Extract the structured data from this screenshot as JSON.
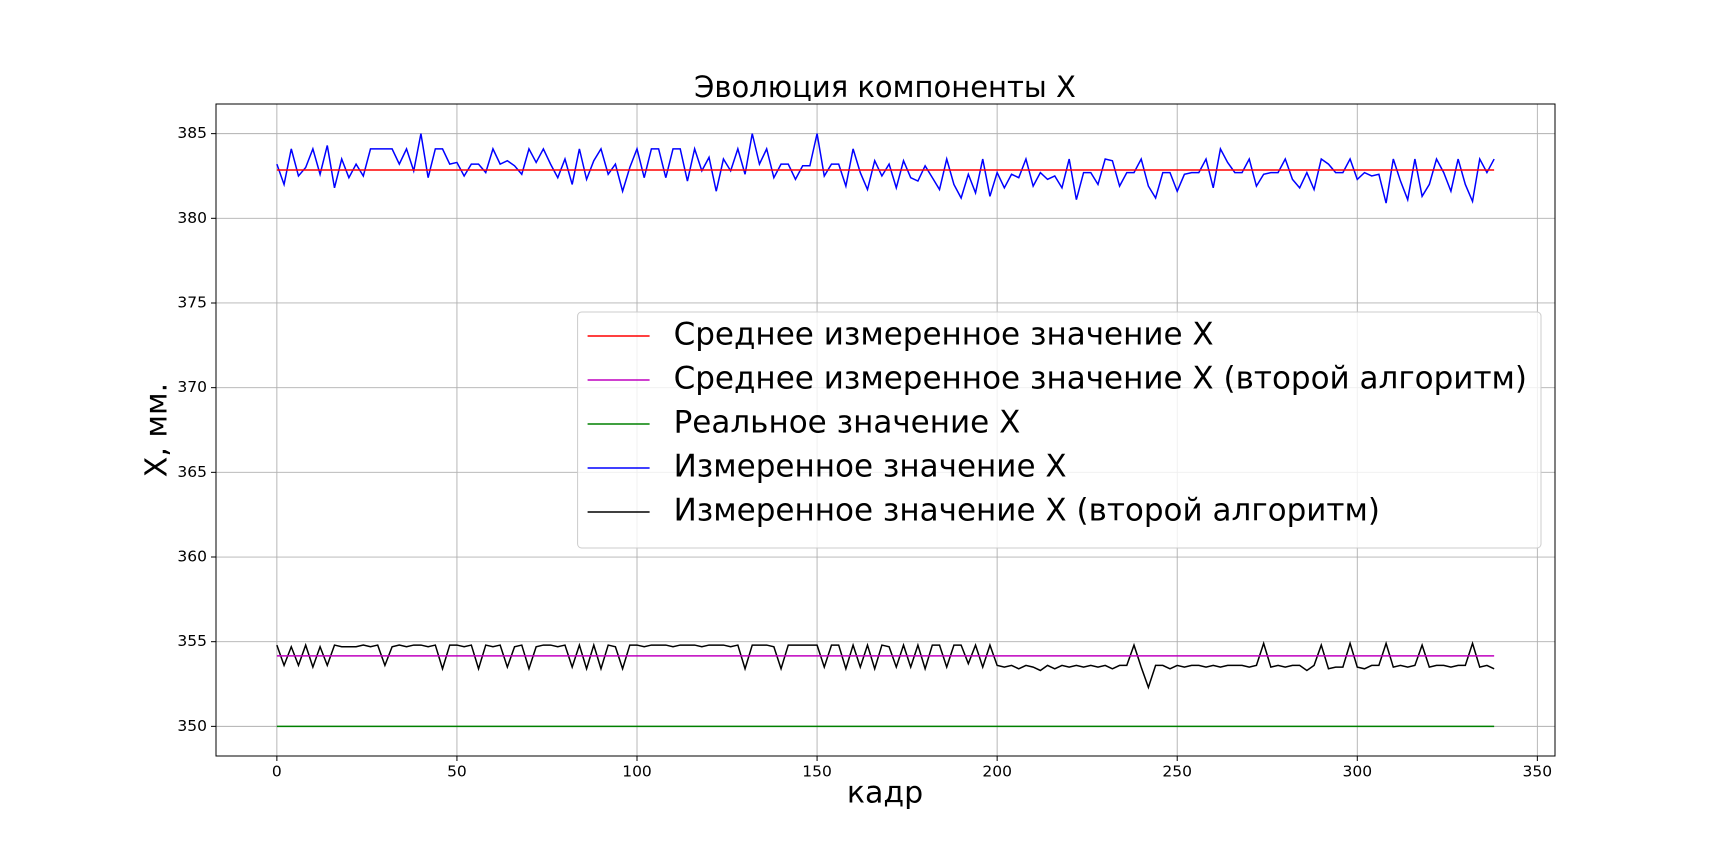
{
  "chart_data": {
    "type": "line",
    "title": "Эволюция компоненты X",
    "x_label": "кадр",
    "y_label": "X, мм.",
    "xlim": [
      -16.9,
      354.9
    ],
    "ylim": [
      348.25,
      386.75
    ],
    "xticks": [
      0,
      50,
      100,
      150,
      200,
      250,
      300,
      350
    ],
    "yticks": [
      350,
      355,
      360,
      365,
      370,
      375,
      380,
      385
    ],
    "grid": true,
    "legend_loc": "center right",
    "x": [
      0,
      2,
      4,
      6,
      8,
      10,
      12,
      14,
      16,
      18,
      20,
      22,
      24,
      26,
      28,
      30,
      32,
      34,
      36,
      38,
      40,
      42,
      44,
      46,
      48,
      50,
      52,
      54,
      56,
      58,
      60,
      62,
      64,
      66,
      68,
      70,
      72,
      74,
      76,
      78,
      80,
      82,
      84,
      86,
      88,
      90,
      92,
      94,
      96,
      98,
      100,
      102,
      104,
      106,
      108,
      110,
      112,
      114,
      116,
      118,
      120,
      122,
      124,
      126,
      128,
      130,
      132,
      134,
      136,
      138,
      140,
      142,
      144,
      146,
      148,
      150,
      152,
      154,
      156,
      158,
      160,
      162,
      164,
      166,
      168,
      170,
      172,
      174,
      176,
      178,
      180,
      182,
      184,
      186,
      188,
      190,
      192,
      194,
      196,
      198,
      200,
      202,
      204,
      206,
      208,
      210,
      212,
      214,
      216,
      218,
      220,
      222,
      224,
      226,
      228,
      230,
      232,
      234,
      236,
      238,
      240,
      242,
      244,
      246,
      248,
      250,
      252,
      254,
      256,
      258,
      260,
      262,
      264,
      266,
      268,
      270,
      272,
      274,
      276,
      278,
      280,
      282,
      284,
      286,
      288,
      290,
      292,
      294,
      296,
      298,
      300,
      302,
      304,
      306,
      308,
      310,
      312,
      314,
      316,
      318,
      320,
      322,
      324,
      326,
      328,
      330,
      332,
      334,
      336,
      338
    ],
    "series": [
      {
        "name": "Среднее измеренное значение X",
        "color": "#ff0000",
        "x": [
          0,
          338
        ],
        "values": [
          382.85,
          382.85
        ]
      },
      {
        "name": "Среднее измеренное значение X (второй алгоритм)",
        "color": "#bf00bf",
        "x": [
          0,
          338
        ],
        "values": [
          354.16,
          354.16
        ]
      },
      {
        "name": "Реальное значение X",
        "color": "#008000",
        "x": [
          0,
          338
        ],
        "values": [
          350,
          350
        ]
      },
      {
        "name": "Измеренное значение X",
        "color": "#0000ff",
        "values": [
          383.2,
          382.0,
          384.1,
          382.5,
          383.0,
          384.1,
          382.6,
          384.3,
          381.8,
          383.5,
          382.4,
          383.2,
          382.5,
          384.1,
          384.1,
          384.1,
          384.1,
          383.2,
          384.1,
          382.8,
          385.0,
          382.4,
          384.1,
          384.1,
          383.2,
          383.3,
          382.5,
          383.2,
          383.2,
          382.7,
          384.1,
          383.2,
          383.4,
          383.1,
          382.6,
          384.1,
          383.3,
          384.1,
          383.2,
          382.4,
          383.5,
          382.0,
          384.1,
          382.3,
          383.4,
          384.1,
          382.6,
          383.2,
          381.6,
          383.0,
          384.1,
          382.4,
          384.1,
          384.1,
          382.4,
          384.1,
          384.1,
          382.2,
          384.1,
          382.8,
          383.6,
          381.6,
          383.5,
          382.8,
          384.1,
          382.6,
          385.0,
          383.2,
          384.1,
          382.4,
          383.2,
          383.2,
          382.3,
          383.1,
          383.1,
          385.0,
          382.5,
          383.2,
          383.2,
          381.9,
          384.1,
          382.7,
          381.7,
          383.4,
          382.5,
          383.2,
          381.8,
          383.4,
          382.4,
          382.2,
          383.1,
          382.4,
          381.7,
          383.5,
          382.0,
          381.2,
          382.6,
          381.5,
          383.5,
          381.3,
          382.7,
          381.8,
          382.6,
          382.4,
          383.5,
          381.9,
          382.7,
          382.3,
          382.5,
          381.8,
          383.5,
          381.1,
          382.7,
          382.7,
          382.0,
          383.5,
          383.4,
          381.9,
          382.7,
          382.7,
          383.5,
          381.9,
          381.2,
          382.7,
          382.7,
          381.6,
          382.6,
          382.7,
          382.7,
          383.5,
          381.8,
          384.1,
          383.3,
          382.7,
          382.7,
          383.5,
          381.9,
          382.6,
          382.7,
          382.7,
          383.5,
          382.3,
          381.8,
          382.7,
          381.7,
          383.5,
          383.2,
          382.7,
          382.7,
          383.5,
          382.3,
          382.7,
          382.5,
          382.6,
          380.9,
          383.5,
          382.2,
          381.1,
          383.5,
          381.3,
          382.0,
          383.5,
          382.7,
          381.6,
          383.5,
          382.0,
          381.0,
          383.5,
          382.7,
          383.5
        ]
      },
      {
        "name": "Измеренное значение X (второй алгоритм)",
        "color": "#000000",
        "values": [
          354.8,
          353.6,
          354.7,
          353.6,
          354.8,
          353.5,
          354.7,
          353.6,
          354.8,
          354.7,
          354.7,
          354.7,
          354.8,
          354.7,
          354.8,
          353.6,
          354.7,
          354.8,
          354.7,
          354.8,
          354.8,
          354.7,
          354.8,
          353.4,
          354.8,
          354.8,
          354.7,
          354.8,
          353.4,
          354.8,
          354.7,
          354.8,
          353.5,
          354.7,
          354.8,
          353.4,
          354.7,
          354.8,
          354.8,
          354.7,
          354.8,
          353.5,
          354.8,
          353.4,
          354.8,
          353.4,
          354.8,
          354.7,
          353.4,
          354.8,
          354.8,
          354.7,
          354.8,
          354.8,
          354.8,
          354.7,
          354.8,
          354.8,
          354.8,
          354.7,
          354.8,
          354.8,
          354.8,
          354.7,
          354.8,
          353.4,
          354.8,
          354.8,
          354.8,
          354.7,
          353.4,
          354.8,
          354.8,
          354.8,
          354.8,
          354.8,
          353.5,
          354.8,
          354.8,
          353.4,
          354.8,
          353.5,
          354.8,
          353.4,
          354.8,
          354.7,
          353.5,
          354.8,
          353.5,
          354.8,
          353.4,
          354.8,
          354.8,
          353.5,
          354.8,
          354.8,
          353.7,
          354.8,
          353.5,
          354.8,
          353.6,
          353.5,
          353.6,
          353.4,
          353.6,
          353.5,
          353.3,
          353.6,
          353.4,
          353.6,
          353.5,
          353.6,
          353.5,
          353.6,
          353.5,
          353.6,
          353.4,
          353.6,
          353.6,
          354.8,
          353.5,
          352.3,
          353.6,
          353.6,
          353.4,
          353.6,
          353.5,
          353.6,
          353.6,
          353.5,
          353.6,
          353.5,
          353.6,
          353.6,
          353.6,
          353.5,
          353.6,
          354.9,
          353.5,
          353.6,
          353.5,
          353.6,
          353.6,
          353.3,
          353.6,
          354.8,
          353.4,
          353.5,
          353.5,
          354.9,
          353.5,
          353.4,
          353.6,
          353.6,
          354.9,
          353.5,
          353.6,
          353.5,
          353.6,
          354.8,
          353.5,
          353.6,
          353.6,
          353.5,
          353.6,
          353.6,
          354.9,
          353.5,
          353.6,
          353.4
        ]
      }
    ]
  }
}
